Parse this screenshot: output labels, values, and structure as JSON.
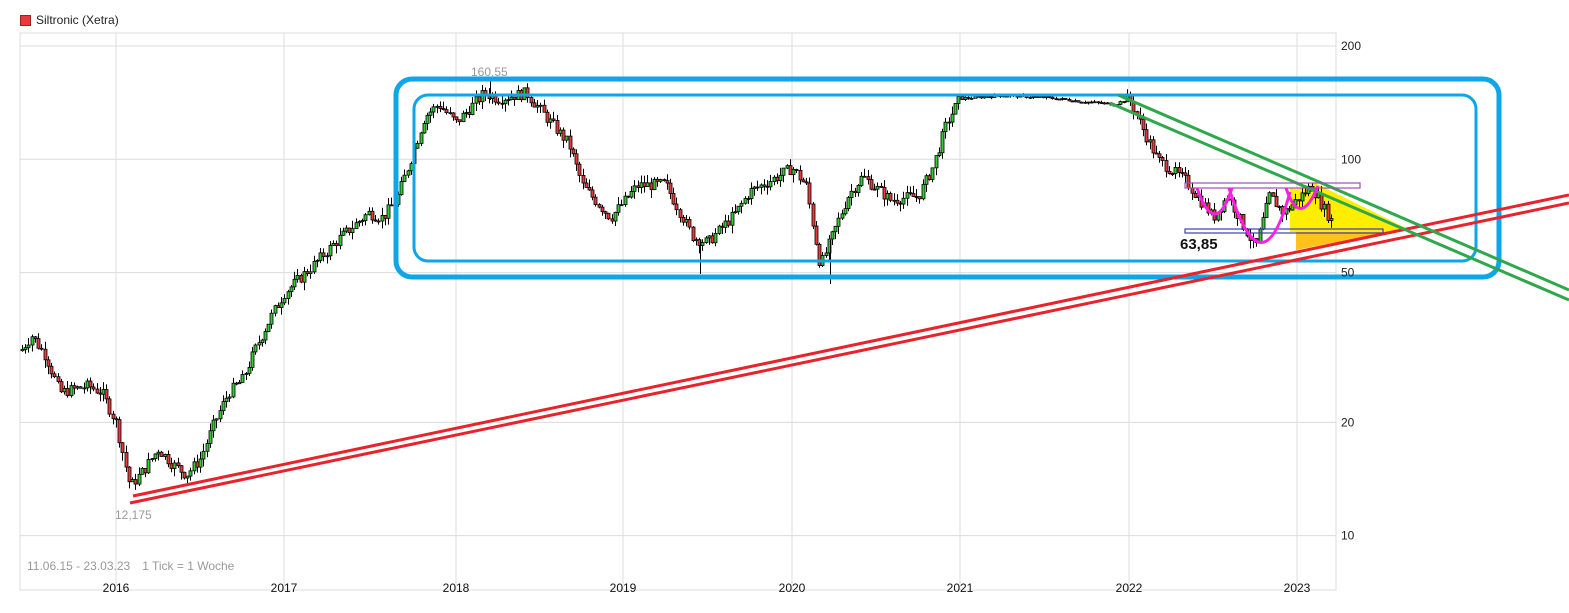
{
  "header": {
    "instrument": "Siltronic (Xetra)",
    "legend_color": "#e8393b"
  },
  "footer": {
    "date_range": "11.06.15 - 23.03.23",
    "tick_info": "1 Tick = 1 Woche"
  },
  "chart_data": {
    "type": "candlestick",
    "title": "Siltronic (Xetra)",
    "xlabel": "",
    "ylabel": "",
    "y_scale": "log",
    "ylim": [
      7,
      210
    ],
    "y_ticks": [
      200,
      100,
      50,
      20,
      10
    ],
    "x_ticks": [
      "2016",
      "2017",
      "2018",
      "2019",
      "2020",
      "2021",
      "2022",
      "2023"
    ],
    "grid": true,
    "period": "11.06.15 - 23.03.23",
    "interval": "1 Woche",
    "colors": {
      "up": "#33cc33",
      "down": "#e8393b",
      "wick": "#000000"
    },
    "approx_weekly_close_path": [
      {
        "date": "2015-06",
        "value": 31
      },
      {
        "date": "2015-07",
        "value": 34
      },
      {
        "date": "2015-08",
        "value": 30
      },
      {
        "date": "2015-09",
        "value": 24
      },
      {
        "date": "2015-11",
        "value": 25
      },
      {
        "date": "2015-12",
        "value": 24
      },
      {
        "date": "2016-01",
        "value": 20
      },
      {
        "date": "2016-02",
        "value": 13.5
      },
      {
        "date": "2016-03",
        "value": 15
      },
      {
        "date": "2016-04",
        "value": 17
      },
      {
        "date": "2016-05",
        "value": 15.5
      },
      {
        "date": "2016-06",
        "value": 14.5
      },
      {
        "date": "2016-07",
        "value": 16
      },
      {
        "date": "2016-08",
        "value": 20
      },
      {
        "date": "2016-09",
        "value": 24
      },
      {
        "date": "2016-10",
        "value": 26
      },
      {
        "date": "2016-11",
        "value": 32
      },
      {
        "date": "2016-12",
        "value": 38
      },
      {
        "date": "2017-01",
        "value": 44
      },
      {
        "date": "2017-03",
        "value": 52
      },
      {
        "date": "2017-05",
        "value": 62
      },
      {
        "date": "2017-07",
        "value": 72
      },
      {
        "date": "2017-08",
        "value": 70
      },
      {
        "date": "2017-09",
        "value": 78
      },
      {
        "date": "2017-10",
        "value": 100
      },
      {
        "date": "2017-11",
        "value": 130
      },
      {
        "date": "2017-12",
        "value": 140
      },
      {
        "date": "2018-01",
        "value": 125
      },
      {
        "date": "2018-03",
        "value": 150
      },
      {
        "date": "2018-04",
        "value": 145
      },
      {
        "date": "2018-06",
        "value": 150
      },
      {
        "date": "2018-07",
        "value": 135
      },
      {
        "date": "2018-09",
        "value": 110
      },
      {
        "date": "2018-10",
        "value": 85
      },
      {
        "date": "2018-12",
        "value": 70
      },
      {
        "date": "2019-02",
        "value": 85
      },
      {
        "date": "2019-04",
        "value": 86
      },
      {
        "date": "2019-06",
        "value": 62
      },
      {
        "date": "2019-07",
        "value": 60
      },
      {
        "date": "2019-09",
        "value": 72
      },
      {
        "date": "2019-10",
        "value": 82
      },
      {
        "date": "2019-12",
        "value": 90
      },
      {
        "date": "2020-01",
        "value": 95
      },
      {
        "date": "2020-02",
        "value": 85
      },
      {
        "date": "2020-03",
        "value": 52
      },
      {
        "date": "2020-05",
        "value": 80
      },
      {
        "date": "2020-06",
        "value": 90
      },
      {
        "date": "2020-08",
        "value": 78
      },
      {
        "date": "2020-10",
        "value": 80
      },
      {
        "date": "2020-11",
        "value": 95
      },
      {
        "date": "2020-12",
        "value": 125
      },
      {
        "date": "2021-01",
        "value": 145
      },
      {
        "date": "2021-04",
        "value": 148
      },
      {
        "date": "2021-07",
        "value": 146
      },
      {
        "date": "2021-10",
        "value": 142
      },
      {
        "date": "2021-12",
        "value": 140
      },
      {
        "date": "2022-01",
        "value": 145
      },
      {
        "date": "2022-02",
        "value": 120
      },
      {
        "date": "2022-03",
        "value": 100
      },
      {
        "date": "2022-05",
        "value": 88
      },
      {
        "date": "2022-07",
        "value": 70
      },
      {
        "date": "2022-08",
        "value": 80
      },
      {
        "date": "2022-10",
        "value": 58
      },
      {
        "date": "2022-11",
        "value": 80
      },
      {
        "date": "2022-12",
        "value": 72
      },
      {
        "date": "2023-02",
        "value": 85
      },
      {
        "date": "2023-03",
        "value": 66
      }
    ],
    "annotations": [
      {
        "type": "label",
        "text": "160,55",
        "note": "all-time high marker (2018)"
      },
      {
        "type": "label",
        "text": "12,175",
        "note": "low marker (2016)"
      },
      {
        "type": "label",
        "text": "63,85",
        "note": "support level (2022/23)"
      },
      {
        "type": "rounded-rect",
        "color": "#0ea5e9",
        "note": "outer sideways range box 2017-2023"
      },
      {
        "type": "rounded-rect",
        "color": "#0ea5e9",
        "note": "inner sideways range box"
      },
      {
        "type": "trendline-pair",
        "color": "#e8393b",
        "note": "long-term rising support from 2016 low"
      },
      {
        "type": "trendline-pair",
        "color": "#2ea84a",
        "note": "falling resistance from 2022 high"
      },
      {
        "type": "arcs",
        "color": "#ff00ff",
        "note": "inverse head and shoulders pattern"
      },
      {
        "type": "rect",
        "color": "#a855f7",
        "note": "neckline zone ~87"
      },
      {
        "type": "rect",
        "color": "#4444cc",
        "note": "support zone ~63,85"
      },
      {
        "type": "triangle",
        "color": "#ffee00",
        "note": "yellow triangle wedge"
      },
      {
        "type": "polygon",
        "color": "#ffc000",
        "note": "orange wedge below support"
      }
    ]
  },
  "axis": {
    "y_labels": [
      "200",
      "100",
      "50",
      "20",
      "10"
    ],
    "x_labels": [
      "2016",
      "2017",
      "2018",
      "2019",
      "2020",
      "2021",
      "2022",
      "2023"
    ]
  },
  "labels": {
    "high": "160,55",
    "low": "12,175",
    "support": "63,85"
  }
}
